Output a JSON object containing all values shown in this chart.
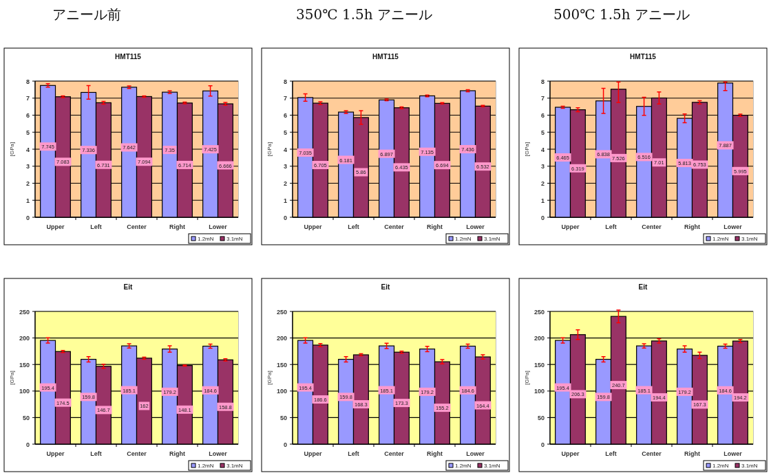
{
  "chart_data": [
    {
      "type": "bar",
      "title": "アニール前",
      "subtitle": "HMT115",
      "ylabel": "[GPa]",
      "categories": [
        "Upper",
        "Left",
        "Center",
        "Right",
        "Lower"
      ],
      "bands": [
        {
          "axis": "y",
          "from": 0,
          "to": 8,
          "color": "#ffcc99"
        }
      ],
      "ylim": [
        0,
        8
      ],
      "yticks": [
        0,
        1,
        2,
        3,
        4,
        5,
        6,
        7,
        8
      ],
      "grid": "y",
      "legend": "bottom right",
      "data_labels": true,
      "series": [
        {
          "name": "1.2mN",
          "color": "#9999ff",
          "values": [
            7.745,
            7.336,
            7.642,
            7.35,
            7.425
          ],
          "errors": [
            0.1,
            0.4,
            0.08,
            0.08,
            0.3
          ]
        },
        {
          "name": "3.1mN",
          "color": "#993366",
          "values": [
            7.083,
            6.731,
            7.094,
            6.714,
            6.666
          ],
          "errors": [
            0.05,
            0.08,
            0.04,
            0.05,
            0.08
          ]
        }
      ]
    },
    {
      "type": "bar",
      "title": "350℃ 1.5h アニール",
      "subtitle": "HMT115",
      "ylabel": "[GPa]",
      "categories": [
        "Upper",
        "Left",
        "Center",
        "Right",
        "Lower"
      ],
      "bands": [
        {
          "axis": "y",
          "from": 0,
          "to": 8,
          "color": "#ffcc99"
        }
      ],
      "ylim": [
        0,
        8
      ],
      "yticks": [
        0,
        1,
        2,
        3,
        4,
        5,
        6,
        7,
        8
      ],
      "grid": "y",
      "legend": "bottom right",
      "data_labels": true,
      "series": [
        {
          "name": "1.2mN",
          "color": "#9999ff",
          "values": [
            7.035,
            6.181,
            6.897,
            7.135,
            7.436
          ],
          "errors": [
            0.22,
            0.08,
            0.05,
            0.05,
            0.06
          ]
        },
        {
          "name": "3.1mN",
          "color": "#993366",
          "values": [
            6.705,
            5.86,
            6.435,
            6.694,
            6.532
          ],
          "errors": [
            0.08,
            0.4,
            0.05,
            0.04,
            0.04
          ]
        }
      ]
    },
    {
      "type": "bar",
      "title": "500℃ 1.5h アニール",
      "subtitle": "HMT115",
      "ylabel": "[GPa]",
      "categories": [
        "Upper",
        "Left",
        "Center",
        "Right",
        "Lower"
      ],
      "bands": [
        {
          "axis": "y",
          "from": 0,
          "to": 8,
          "color": "#ffcc99"
        }
      ],
      "ylim": [
        0,
        8
      ],
      "yticks": [
        0,
        1,
        2,
        3,
        4,
        5,
        6,
        7,
        8
      ],
      "grid": "y",
      "legend": "bottom right",
      "data_labels": true,
      "series": [
        {
          "name": "1.2mN",
          "color": "#9999ff",
          "values": [
            6.465,
            6.838,
            6.516,
            5.813,
            7.887
          ],
          "errors": [
            0.06,
            0.74,
            0.53,
            0.26,
            [
              7.44,
              7.95
            ]
          ]
        },
        {
          "name": "3.1mN",
          "color": "#993366",
          "values": [
            6.319,
            7.526,
            7.01,
            6.753,
            5.995
          ],
          "errors": [
            0.12,
            [
              6.75,
              7.95
            ],
            0.35,
            0.1,
            0.07
          ]
        }
      ]
    },
    {
      "type": "bar",
      "title": "Eit",
      "ylabel": "[GPa]",
      "categories": [
        "Upper",
        "Left",
        "Center",
        "Right",
        "Lower"
      ],
      "bands": [
        {
          "axis": "y",
          "from": 0,
          "to": 250,
          "color": "#ffff99"
        }
      ],
      "ylim": [
        0,
        250
      ],
      "yticks": [
        0,
        50,
        100,
        150,
        200,
        250
      ],
      "grid": "y",
      "legend": "bottom right",
      "data_labels": true,
      "series": [
        {
          "name": "1.2mN",
          "color": "#9999ff",
          "values": [
            195.4,
            159.8,
            185.1,
            179.2,
            184.6
          ],
          "errors": [
            5,
            5,
            4,
            6,
            4
          ]
        },
        {
          "name": "3.1mN",
          "color": "#993366",
          "values": [
            174.5,
            146.7,
            162,
            148.1,
            158.8
          ],
          "errors": [
            2,
            4,
            2,
            1,
            2
          ]
        }
      ]
    },
    {
      "type": "bar",
      "title": "Eit",
      "ylabel": "[GPa]",
      "categories": [
        "Upper",
        "Left",
        "Center",
        "Right",
        "Lower"
      ],
      "bands": [
        {
          "axis": "y",
          "from": 0,
          "to": 250,
          "color": "#ffff99"
        }
      ],
      "ylim": [
        0,
        250
      ],
      "yticks": [
        0,
        50,
        100,
        150,
        200,
        250
      ],
      "grid": "y",
      "legend": "bottom right",
      "data_labels": true,
      "series": [
        {
          "name": "1.2mN",
          "color": "#9999ff",
          "values": [
            195.4,
            159.8,
            185.1,
            179.2,
            184.6
          ],
          "errors": [
            5,
            5,
            5,
            5,
            4
          ]
        },
        {
          "name": "3.1mN",
          "color": "#993366",
          "values": [
            186.6,
            168.3,
            173.3,
            155.2,
            164.4
          ],
          "errors": [
            3,
            2,
            2,
            4,
            4
          ]
        }
      ]
    },
    {
      "type": "bar",
      "title": "Eit",
      "ylabel": "[GPa]",
      "categories": [
        "Upper",
        "Left",
        "Center",
        "Right",
        "Lower"
      ],
      "bands": [
        {
          "axis": "y",
          "from": 0,
          "to": 250,
          "color": "#ffff99"
        }
      ],
      "ylim": [
        0,
        250
      ],
      "yticks": [
        0,
        50,
        100,
        150,
        200,
        250
      ],
      "grid": "y",
      "legend": "bottom right",
      "data_labels": true,
      "series": [
        {
          "name": "1.2mN",
          "color": "#9999ff",
          "values": [
            195.4,
            159.8,
            185.1,
            179.2,
            184.6
          ],
          "errors": [
            5,
            5,
            4,
            6,
            4
          ]
        },
        {
          "name": "3.1mN",
          "color": "#993366",
          "values": [
            206.3,
            240.7,
            194.4,
            167.3,
            194.2
          ],
          "errors": [
            9,
            12,
            4,
            6,
            3
          ]
        }
      ]
    }
  ]
}
